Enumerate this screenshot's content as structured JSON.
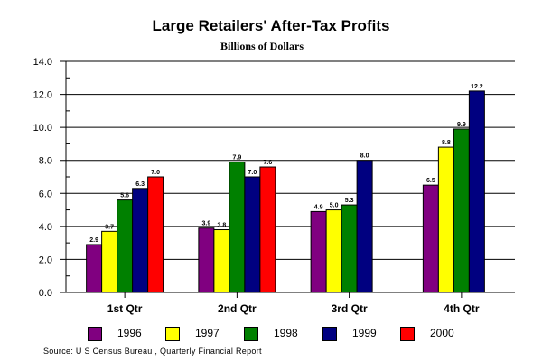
{
  "chart_data": {
    "type": "bar",
    "title": "Large Retailers' After-Tax Profits",
    "subtitle": "Billions of Dollars",
    "xlabel": "",
    "ylabel": "",
    "ylim": [
      0,
      14
    ],
    "yticks": [
      "0.0",
      "2.0",
      "4.0",
      "6.0",
      "8.0",
      "10.0",
      "12.0",
      "14.0"
    ],
    "grid": true,
    "legend_placement": "bottom",
    "categories": [
      "1st Qtr",
      "2nd Qtr",
      "3rd Qtr",
      "4th Qtr"
    ],
    "series": [
      {
        "name": "1996",
        "color": "#800080",
        "values": [
          2.9,
          3.9,
          4.9,
          6.5
        ],
        "labels": [
          "2.9",
          "3.9",
          "4.9",
          "6.5"
        ]
      },
      {
        "name": "1997",
        "color": "#FFFF00",
        "values": [
          3.7,
          3.8,
          5.0,
          8.8
        ],
        "labels": [
          "3.7",
          "3.8",
          "5.0",
          "8.8"
        ]
      },
      {
        "name": "1998",
        "color": "#008000",
        "values": [
          5.6,
          7.9,
          5.3,
          9.9
        ],
        "labels": [
          "5.6",
          "7.9",
          "5.3",
          "9.9"
        ]
      },
      {
        "name": "1999",
        "color": "#000080",
        "values": [
          6.3,
          7.0,
          8.0,
          12.2
        ],
        "labels": [
          "6.3",
          "7.0",
          "8.0",
          "12.2"
        ]
      },
      {
        "name": "2000",
        "color": "#FF0000",
        "values": [
          7.0,
          7.6,
          null,
          null
        ],
        "labels": [
          "7.0",
          "7.6",
          null,
          null
        ]
      }
    ],
    "source": "Source: U S Census Bureau , Quarterly Financial Report"
  }
}
